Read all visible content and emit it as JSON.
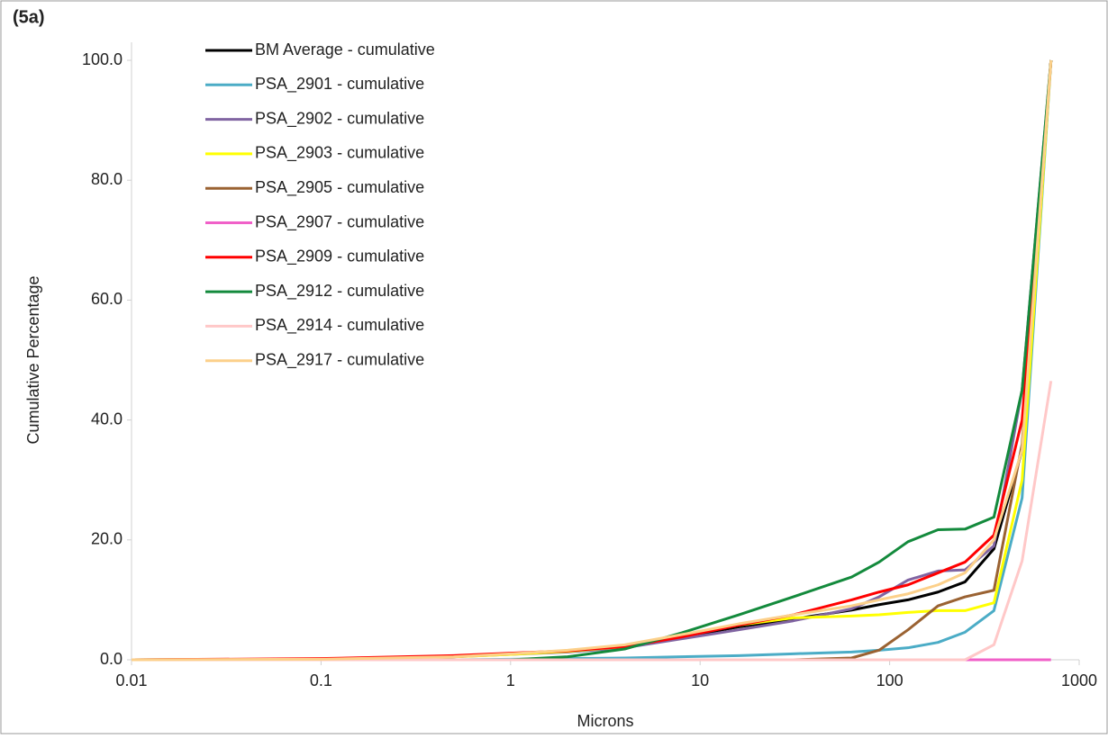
{
  "chart_data": {
    "type": "line",
    "title": "(5a)",
    "x_label": "Microns",
    "y_label": "Cumulative Percentage",
    "log_x": true,
    "grid": false,
    "legend": "upper left",
    "x": [
      0.01,
      0.1,
      0.5,
      1,
      2,
      4,
      8,
      16,
      31,
      63,
      88,
      125,
      180,
      250,
      355,
      500,
      710
    ],
    "xlim": [
      0.01,
      1000
    ],
    "xticks": [
      0.01,
      0.1,
      1,
      10,
      100,
      1000
    ],
    "ylim": [
      0,
      100
    ],
    "yticks": [
      {
        "value": 0,
        "label": "0.0"
      },
      {
        "value": 20,
        "label": "20.0"
      },
      {
        "value": 40,
        "label": "40.0"
      },
      {
        "value": 60,
        "label": "60.0"
      },
      {
        "value": 80,
        "label": "80.0"
      },
      {
        "value": 100,
        "label": "100.0"
      }
    ],
    "series": [
      {
        "name": "BM Average - cumulative",
        "color": "#000000",
        "values": [
          0,
          0.1,
          0.5,
          1.0,
          1.5,
          2.2,
          3.8,
          5.5,
          6.8,
          8.3,
          9.2,
          10,
          11.3,
          13,
          18.5,
          35,
          100
        ]
      },
      {
        "name": "PSA_2901 - cumulative",
        "color": "#4bacc6",
        "values": [
          0,
          0,
          0,
          0.1,
          0.2,
          0.3,
          0.5,
          0.7,
          1.0,
          1.3,
          1.6,
          2.0,
          2.9,
          4.6,
          8.2,
          27,
          100
        ]
      },
      {
        "name": "PSA_2902 - cumulative",
        "color": "#8064a2",
        "values": [
          0,
          0.1,
          0.5,
          0.9,
          1.3,
          2.0,
          3.5,
          5.0,
          6.5,
          8.5,
          10.5,
          13.3,
          14.8,
          15,
          19,
          45,
          100
        ]
      },
      {
        "name": "PSA_2903 - cumulative",
        "color": "#ffff00",
        "values": [
          0,
          0.1,
          0.5,
          0.9,
          1.4,
          2.2,
          4.0,
          5.8,
          7.0,
          7.3,
          7.5,
          7.9,
          8.2,
          8.2,
          9.5,
          30,
          100
        ]
      },
      {
        "name": "PSA_2905 - cumulative",
        "color": "#9a6232",
        "values": [
          0,
          0,
          0,
          0,
          0,
          0,
          0,
          0,
          0,
          0.3,
          1.6,
          5,
          9,
          10.5,
          11.6,
          36,
          100
        ]
      },
      {
        "name": "PSA_2907 - cumulative",
        "color": "#f060c8",
        "values": [
          0,
          0,
          0,
          0,
          0,
          0,
          0,
          0,
          0,
          0,
          0,
          0,
          0,
          0,
          0,
          0,
          0
        ]
      },
      {
        "name": "PSA_2909 - cumulative",
        "color": "#ff0000",
        "values": [
          0,
          0.2,
          0.7,
          1.1,
          1.5,
          2.2,
          3.8,
          5.8,
          7.5,
          10,
          11.3,
          12.5,
          14.5,
          16.3,
          20.8,
          40,
          100
        ]
      },
      {
        "name": "PSA_2912 - cumulative",
        "color": "#138a3c",
        "values": [
          0,
          0,
          0,
          0,
          0.5,
          1.8,
          4.5,
          7.5,
          10.5,
          13.8,
          16.3,
          19.7,
          21.7,
          21.8,
          23.8,
          45,
          100
        ]
      },
      {
        "name": "PSA_2914 - cumulative",
        "color": "#ffc8c8",
        "values": [
          0,
          0,
          0,
          0,
          0,
          0,
          0,
          0,
          0,
          0,
          0,
          0,
          0,
          0,
          2.5,
          16.5,
          46.5
        ]
      },
      {
        "name": "PSA_2917 - cumulative",
        "color": "#fcd08a",
        "values": [
          0,
          0.1,
          0.5,
          1.0,
          1.6,
          2.5,
          4.2,
          6.0,
          7.5,
          9,
          10,
          11,
          12.5,
          14.5,
          20,
          35,
          100
        ]
      }
    ]
  }
}
